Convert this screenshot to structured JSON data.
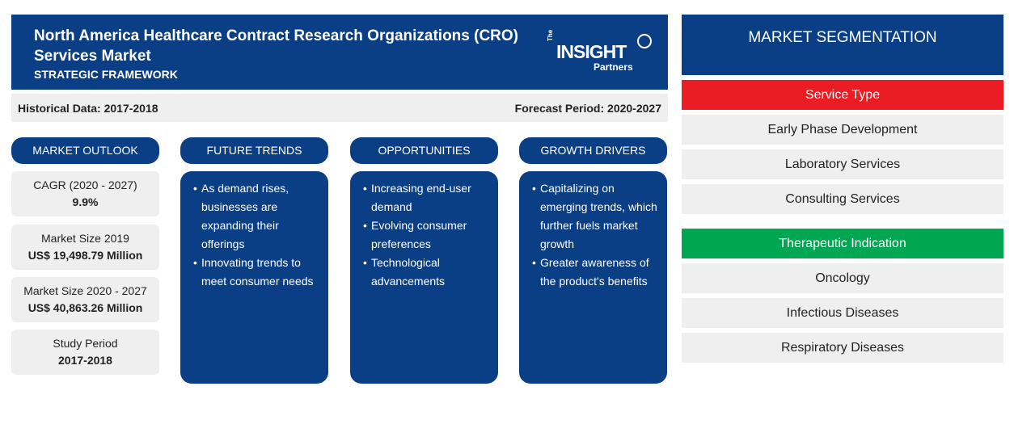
{
  "header": {
    "title": "North America Healthcare Contract Research Organizations (CRO) Services Market",
    "subtitle": "STRATEGIC FRAMEWORK",
    "logo": {
      "the": "The",
      "insight": "INSIGHT",
      "partners": "Partners"
    }
  },
  "period": {
    "historical": "Historical Data: 2017-2018",
    "forecast": "Forecast Period: 2020-2027"
  },
  "columns": {
    "outlook": "MARKET OUTLOOK",
    "trends": "FUTURE TRENDS",
    "opportunities": "OPPORTUNITIES",
    "drivers": "GROWTH DRIVERS"
  },
  "outlook": [
    {
      "label": "CAGR (2020 - 2027)",
      "value": "9.9%"
    },
    {
      "label": "Market Size 2019",
      "value": "US$ 19,498.79 Million"
    },
    {
      "label": "Market Size 2020 - 2027",
      "value": "US$ 40,863.26 Million"
    },
    {
      "label": "Study Period",
      "value": "2017-2018"
    }
  ],
  "trends": [
    "As demand rises, businesses are expanding their offerings",
    "Innovating trends to meet consumer needs"
  ],
  "opportunities": [
    "Increasing end-user demand",
    "Evolving consumer preferences",
    "Technological advancements"
  ],
  "drivers": [
    "Capitalizing on emerging trends, which further fuels market growth",
    "Greater awareness of the product's benefits"
  ],
  "segmentation": {
    "title": "MARKET SEGMENTATION",
    "groups": [
      {
        "name": "Service Type",
        "color": "#ec1c24",
        "items": [
          "Early Phase Development",
          "Laboratory Services",
          "Consulting Services"
        ]
      },
      {
        "name": "Therapeutic Indication",
        "color": "#00a651",
        "items": [
          "Oncology",
          "Infectious Diseases",
          "Respiratory Diseases"
        ]
      }
    ]
  },
  "colors": {
    "navy": "#0b3f85",
    "panel": "#efefef"
  }
}
